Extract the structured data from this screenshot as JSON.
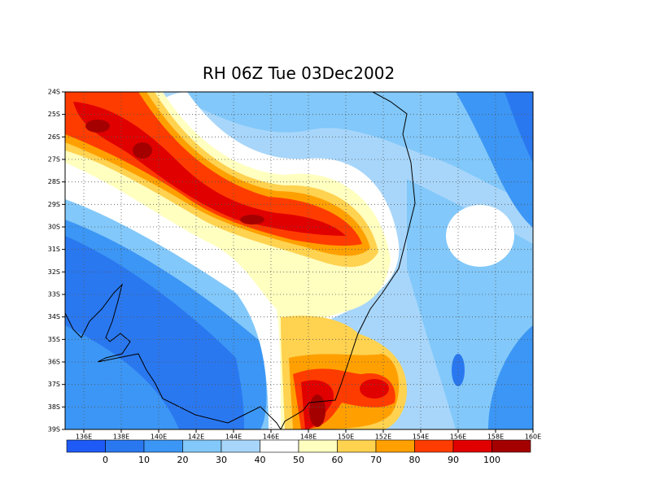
{
  "title": "RH 06Z Tue 03Dec2002",
  "map": {
    "lonlim": [
      135,
      160
    ],
    "latlim": [
      -24,
      -39
    ],
    "lon_ticks": [
      {
        "value": 136,
        "label": "136E"
      },
      {
        "value": 138,
        "label": "138E"
      },
      {
        "value": 140,
        "label": "140E"
      },
      {
        "value": 142,
        "label": "142E"
      },
      {
        "value": 144,
        "label": "144E"
      },
      {
        "value": 146,
        "label": "146E"
      },
      {
        "value": 148,
        "label": "148E"
      },
      {
        "value": 150,
        "label": "150E"
      },
      {
        "value": 152,
        "label": "152E"
      },
      {
        "value": 154,
        "label": "154E"
      },
      {
        "value": 156,
        "label": "156E"
      },
      {
        "value": 158,
        "label": "158E"
      },
      {
        "value": 160,
        "label": "160E"
      }
    ],
    "lat_ticks": [
      {
        "value": -24,
        "label": "24S"
      },
      {
        "value": -25,
        "label": "25S"
      },
      {
        "value": -26,
        "label": "26S"
      },
      {
        "value": -27,
        "label": "27S"
      },
      {
        "value": -28,
        "label": "28S"
      },
      {
        "value": -29,
        "label": "29S"
      },
      {
        "value": -30,
        "label": "30S"
      },
      {
        "value": -31,
        "label": "31S"
      },
      {
        "value": -32,
        "label": "32S"
      },
      {
        "value": -33,
        "label": "33S"
      },
      {
        "value": -34,
        "label": "34S"
      },
      {
        "value": -35,
        "label": "35S"
      },
      {
        "value": -36,
        "label": "36S"
      },
      {
        "value": -37,
        "label": "37S"
      },
      {
        "value": -38,
        "label": "38S"
      },
      {
        "value": -39,
        "label": "39S"
      }
    ],
    "colorbar": {
      "levels": [
        0,
        10,
        20,
        30,
        40,
        50,
        60,
        70,
        80,
        90,
        100
      ],
      "colors": [
        "#1e5af5",
        "#2a78f0",
        "#3c96f5",
        "#82c8fa",
        "#a8d6fa",
        "#ffffff",
        "#ffffc0",
        "#ffd250",
        "#ffa000",
        "#ff3c00",
        "#e10000",
        "#a50000"
      ]
    }
  }
}
